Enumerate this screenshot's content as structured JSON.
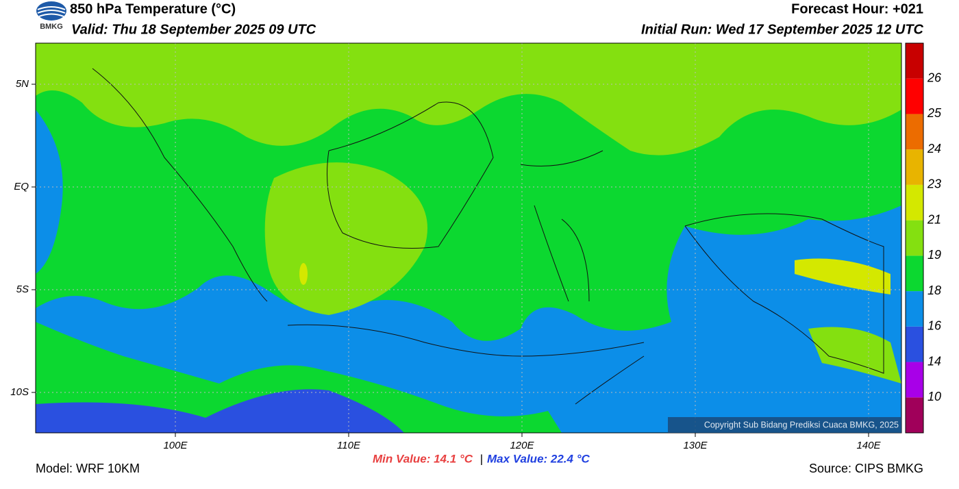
{
  "header": {
    "logo_text": "BMKG",
    "title": "850 hPa Temperature (°C)",
    "valid": "Valid: Thu 18 September 2025 09 UTC",
    "forecast_hour": "Forecast Hour: +021",
    "initial_run": "Initial Run: Wed 17 September 2025 12 UTC"
  },
  "map": {
    "lat_labels": [
      "5N",
      "EQ",
      "5S",
      "10S"
    ],
    "lon_labels": [
      "100E",
      "110E",
      "120E",
      "130E",
      "140E"
    ],
    "copyright": "Copyright Sub Bidang Prediksi Cuaca BMKG, 2025"
  },
  "colorbar": {
    "labels": [
      "10",
      "14",
      "16",
      "18",
      "19",
      "21",
      "23",
      "24",
      "25",
      "26"
    ],
    "colors": [
      "#a0005a",
      "#a800e8",
      "#2a50e0",
      "#0c8ee8",
      "#0cd830",
      "#84e010",
      "#d4e800",
      "#e8b400",
      "#ec6c00",
      "#ff0000",
      "#c80000"
    ]
  },
  "footer": {
    "model": "Model: WRF 10KM",
    "min_value": "Min Value: 14.1 °C",
    "separator": "|",
    "max_value": "Max Value: 22.4 °C",
    "source": "Source: CIPS BMKG"
  }
}
